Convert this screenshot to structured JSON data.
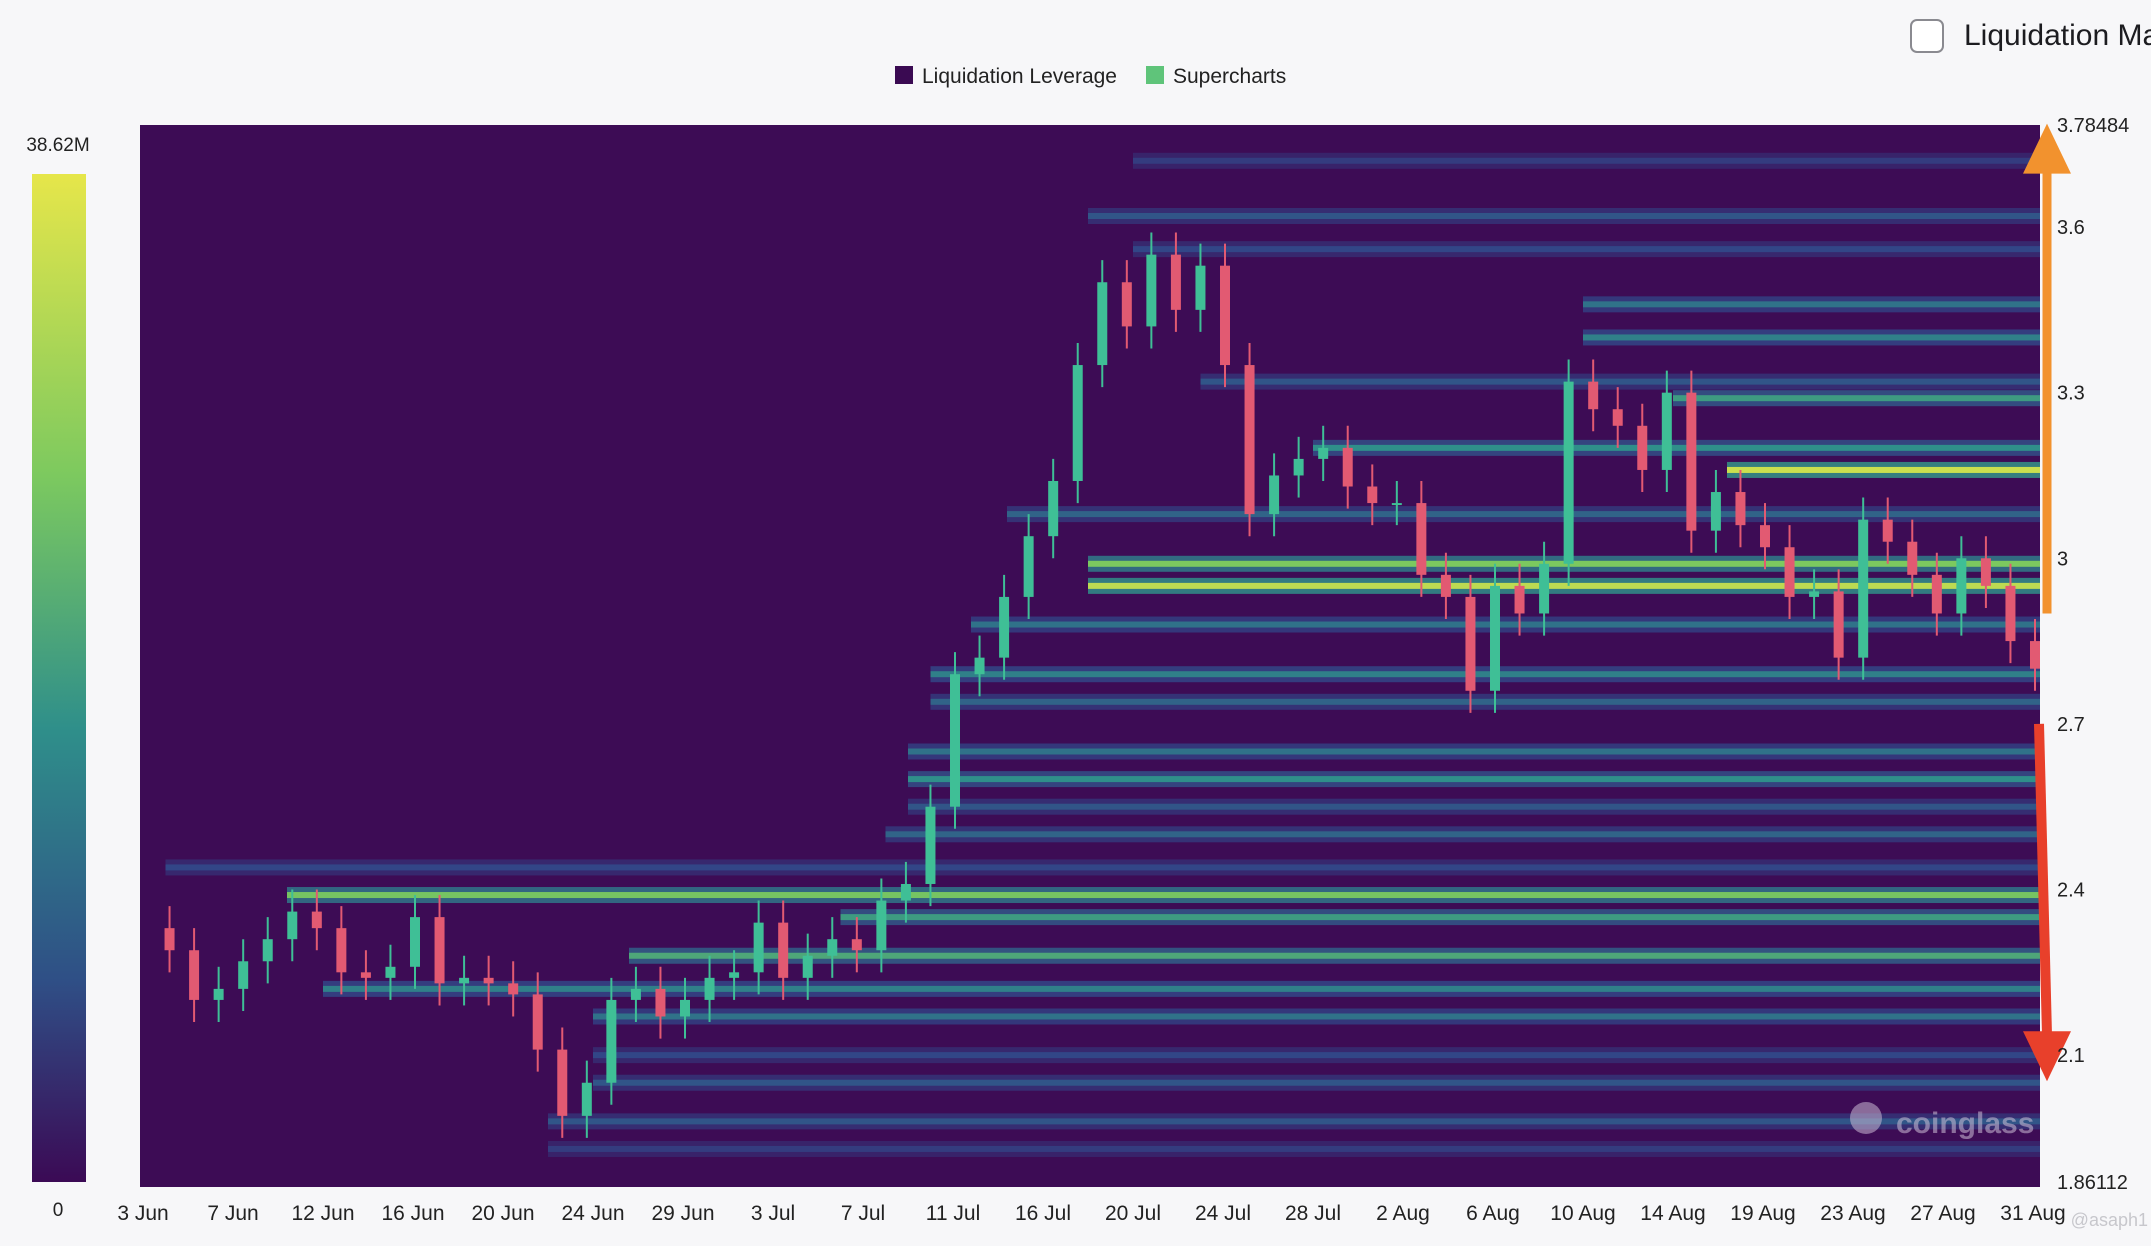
{
  "toggle": {
    "label": "Liquidation Ma",
    "checked": false
  },
  "colors": {
    "background": "#f7f7f9",
    "heatmap_base": "#3d0c55",
    "liquidation_leverage": "#3a0a52",
    "supercharts": "#5fc47a",
    "candle_up": "#3fbf96",
    "candle_down": "#e25a72",
    "arrow_up": "#f2922e",
    "arrow_down": "#e8402b",
    "scale_top": "#e6e64a",
    "scale_mid": "#2f8f8a",
    "scale_bottom": "#3b0a55"
  },
  "chart_data": {
    "type": "heatmap",
    "title": "",
    "legend": [
      {
        "name": "Liquidation Leverage",
        "color": "#3a0a52"
      },
      {
        "name": "Supercharts",
        "color": "#5fc47a"
      }
    ],
    "legend_position": "top-center",
    "color_scale": {
      "min": 0,
      "max": 38.62,
      "min_label": "0",
      "max_label": "38.62M"
    },
    "x_labels": [
      "3 Jun",
      "7 Jun",
      "12 Jun",
      "16 Jun",
      "20 Jun",
      "24 Jun",
      "29 Jun",
      "3 Jul",
      "7 Jul",
      "11 Jul",
      "16 Jul",
      "20 Jul",
      "24 Jul",
      "28 Jul",
      "2 Aug",
      "6 Aug",
      "10 Aug",
      "14 Aug",
      "19 Aug",
      "23 Aug",
      "27 Aug",
      "31 Aug"
    ],
    "y_axis": {
      "min": 1.86112,
      "max": 3.78484,
      "min_label": "1.86112",
      "max_label": "3.78484",
      "ticks": [
        3.6,
        3.3,
        3,
        2.7,
        2.4,
        2.1
      ],
      "tick_labels": [
        "3.6",
        "3.3",
        "3",
        "2.7",
        "2.4",
        "2.1"
      ]
    },
    "price_series": [
      2.33,
      2.29,
      2.2,
      2.22,
      2.27,
      2.31,
      2.36,
      2.33,
      2.25,
      2.24,
      2.26,
      2.35,
      2.23,
      2.24,
      2.23,
      2.21,
      2.11,
      1.99,
      2.05,
      2.2,
      2.22,
      2.17,
      2.2,
      2.24,
      2.25,
      2.34,
      2.24,
      2.28,
      2.31,
      2.29,
      2.38,
      2.41,
      2.55,
      2.79,
      2.82,
      2.93,
      3.04,
      3.14,
      3.35,
      3.5,
      3.42,
      3.55,
      3.45,
      3.53,
      3.35,
      3.08,
      3.15,
      3.18,
      3.2,
      3.13,
      3.1,
      3.1,
      2.97,
      2.93,
      2.76,
      2.95,
      2.9,
      2.99,
      3.32,
      3.27,
      3.24,
      3.16,
      3.3,
      3.05,
      3.12,
      3.06,
      3.02,
      2.93,
      2.94,
      2.82,
      3.07,
      3.03,
      2.97,
      2.9,
      3.0,
      2.95,
      2.85,
      2.8
    ],
    "liquidation_bands": [
      {
        "price": 3.72,
        "start_date": "20 Jul",
        "intensity": 0.25
      },
      {
        "price": 3.62,
        "start_date": "18 Jul",
        "intensity": 0.35
      },
      {
        "price": 3.56,
        "start_date": "20 Jul",
        "intensity": 0.3
      },
      {
        "price": 3.46,
        "start_date": "10 Aug",
        "intensity": 0.45
      },
      {
        "price": 3.4,
        "start_date": "10 Aug",
        "intensity": 0.5
      },
      {
        "price": 3.32,
        "start_date": "23 Jul",
        "intensity": 0.35
      },
      {
        "price": 3.29,
        "start_date": "14 Aug",
        "intensity": 0.6
      },
      {
        "price": 3.2,
        "start_date": "28 Jul",
        "intensity": 0.55
      },
      {
        "price": 3.16,
        "start_date": "17 Aug",
        "intensity": 0.95
      },
      {
        "price": 3.08,
        "start_date": "14 Jul",
        "intensity": 0.4
      },
      {
        "price": 2.99,
        "start_date": "18 Jul",
        "intensity": 0.8
      },
      {
        "price": 2.95,
        "start_date": "18 Jul",
        "intensity": 0.92
      },
      {
        "price": 2.88,
        "start_date": "12 Jul",
        "intensity": 0.45
      },
      {
        "price": 2.79,
        "start_date": "10 Jul",
        "intensity": 0.5
      },
      {
        "price": 2.74,
        "start_date": "10 Jul",
        "intensity": 0.4
      },
      {
        "price": 2.65,
        "start_date": "9 Jul",
        "intensity": 0.45
      },
      {
        "price": 2.6,
        "start_date": "9 Jul",
        "intensity": 0.55
      },
      {
        "price": 2.55,
        "start_date": "9 Jul",
        "intensity": 0.35
      },
      {
        "price": 2.5,
        "start_date": "8 Jul",
        "intensity": 0.4
      },
      {
        "price": 2.44,
        "start_date": "4 Jun",
        "intensity": 0.3
      },
      {
        "price": 2.39,
        "start_date": "10 Jun",
        "intensity": 0.78
      },
      {
        "price": 2.35,
        "start_date": "6 Jul",
        "intensity": 0.6
      },
      {
        "price": 2.28,
        "start_date": "26 Jun",
        "intensity": 0.65
      },
      {
        "price": 2.22,
        "start_date": "12 Jun",
        "intensity": 0.5
      },
      {
        "price": 2.17,
        "start_date": "24 Jun",
        "intensity": 0.45
      },
      {
        "price": 2.1,
        "start_date": "24 Jun",
        "intensity": 0.3
      },
      {
        "price": 2.05,
        "start_date": "24 Jun",
        "intensity": 0.35
      },
      {
        "price": 1.98,
        "start_date": "22 Jun",
        "intensity": 0.35
      },
      {
        "price": 1.93,
        "start_date": "22 Jun",
        "intensity": 0.25
      }
    ],
    "annotations": [
      {
        "type": "arrow-up",
        "from_price": 2.9,
        "to_price": 3.78
      },
      {
        "type": "arrow-down",
        "from_price": 2.7,
        "to_price": 2.06
      }
    ],
    "watermark": "coinglass",
    "corner_text": "@asaph1"
  }
}
